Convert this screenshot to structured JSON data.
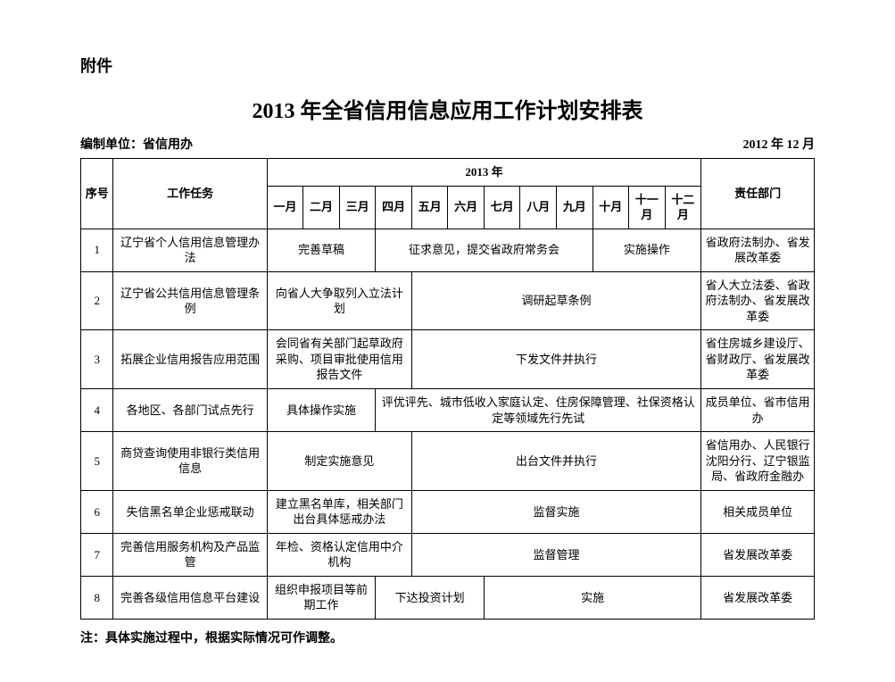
{
  "labels": {
    "attachment": "附件",
    "title": "2013 年全省信用信息应用工作计划安排表",
    "compiler": "编制单位：省信用办",
    "dateright": "2012 年 12 月",
    "footnote": "注：具体实施过程中，根据实际情况可作调整。"
  },
  "header": {
    "seq": "序号",
    "task": "工作任务",
    "year": "2013 年",
    "dept": "责任部门",
    "months": [
      "一月",
      "二月",
      "三月",
      "四月",
      "五月",
      "六月",
      "七月",
      "八月",
      "九月",
      "十月",
      "十一月",
      "十二月"
    ]
  },
  "rows": [
    {
      "seq": "1",
      "task": "辽宁省个人信用信息管理办法",
      "cells": [
        {
          "span": 3,
          "text": "完善草稿"
        },
        {
          "span": 6,
          "text": "征求意见，提交省政府常务会"
        },
        {
          "span": 3,
          "text": "实施操作"
        }
      ],
      "dept": "省政府法制办、省发展改革委"
    },
    {
      "seq": "2",
      "task": "辽宁省公共信用信息管理条例",
      "cells": [
        {
          "span": 4,
          "text": "向省人大争取列入立法计划"
        },
        {
          "span": 8,
          "text": "调研起草条例"
        }
      ],
      "dept": "省人大立法委、省政府法制办、省发展改革委"
    },
    {
      "seq": "3",
      "task": "拓展企业信用报告应用范围",
      "cells": [
        {
          "span": 4,
          "text": "会同省有关部门起草政府采购、项目审批使用信用报告文件"
        },
        {
          "span": 8,
          "text": "下发文件并执行"
        }
      ],
      "dept": "省住房城乡建设厅、省财政厅、省发展改革委"
    },
    {
      "seq": "4",
      "task": "各地区、各部门试点先行",
      "cells": [
        {
          "span": 3,
          "text": "具体操作实施"
        },
        {
          "span": 9,
          "text": "评优评先、城市低收入家庭认定、住房保障管理、社保资格认定等领域先行先试"
        }
      ],
      "dept": "成员单位、省市信用办"
    },
    {
      "seq": "5",
      "task": "商贷查询使用非银行类信用信息",
      "cells": [
        {
          "span": 4,
          "text": "制定实施意见"
        },
        {
          "span": 8,
          "text": "出台文件并执行"
        }
      ],
      "dept": "省信用办、人民银行沈阳分行、辽宁银监局、省政府金融办"
    },
    {
      "seq": "6",
      "task": "失信黑名单企业惩戒联动",
      "cells": [
        {
          "span": 4,
          "text": "建立黑名单库，相关部门出台具体惩戒办法"
        },
        {
          "span": 8,
          "text": "监督实施"
        }
      ],
      "dept": "相关成员单位"
    },
    {
      "seq": "7",
      "task": "完善信用服务机构及产品监管",
      "cells": [
        {
          "span": 4,
          "text": "年检、资格认定信用中介机构"
        },
        {
          "span": 8,
          "text": "监督管理"
        }
      ],
      "dept": "省发展改革委"
    },
    {
      "seq": "8",
      "task": "完善各级信用信息平台建设",
      "cells": [
        {
          "span": 3,
          "text": "组织申报项目等前期工作"
        },
        {
          "span": 3,
          "text": "下达投资计划"
        },
        {
          "span": 6,
          "text": "实施"
        }
      ],
      "dept": "省发展改革委"
    }
  ],
  "layout": {
    "col_seq_width": 36,
    "col_task_width": 170,
    "col_month_width": 40,
    "col_dept_width": 125
  }
}
